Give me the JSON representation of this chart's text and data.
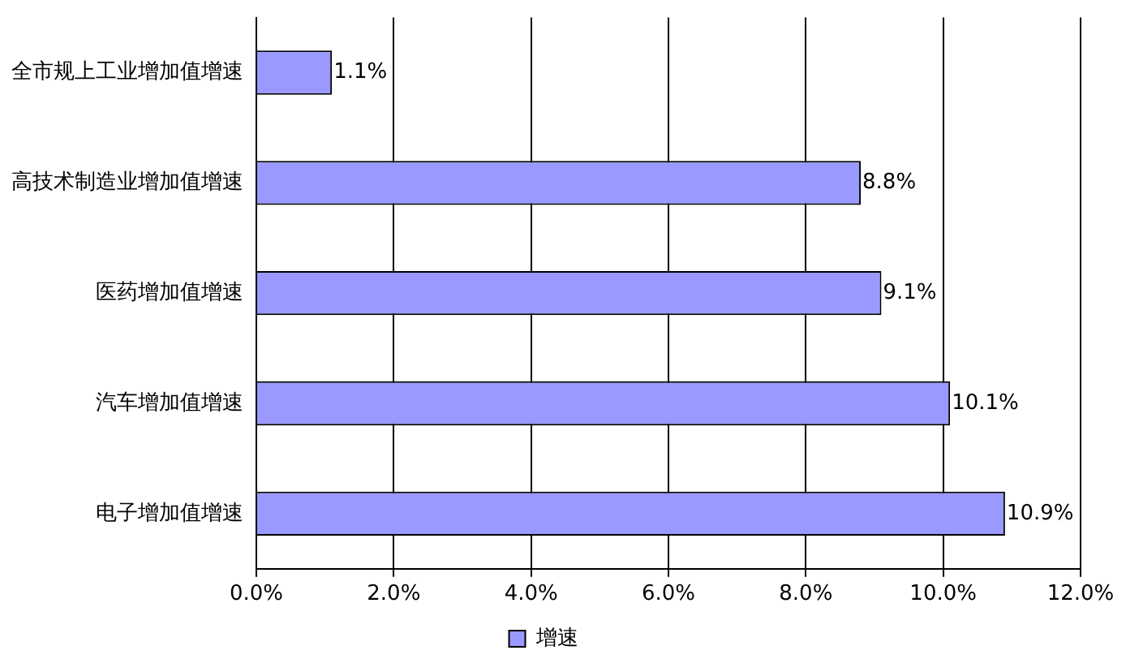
{
  "chart_data": {
    "type": "bar",
    "orientation": "horizontal",
    "categories": [
      "全市规上工业增加值增速",
      "高技术制造业增加值增速",
      "医药增加值增速",
      "汽车增加值增速",
      "电子增加值增速"
    ],
    "series": [
      {
        "name": "增速",
        "color": "#9999ff",
        "values": [
          1.1,
          8.8,
          9.1,
          10.1,
          10.9
        ],
        "value_labels": [
          "1.1%",
          "8.8%",
          "9.1%",
          "10.1%",
          "10.9%"
        ]
      }
    ],
    "xlim": [
      0,
      12
    ],
    "xticks": [
      {
        "value": 0,
        "label": "0.0%"
      },
      {
        "value": 2,
        "label": "2.0%"
      },
      {
        "value": 4,
        "label": "4.0%"
      },
      {
        "value": 6,
        "label": "6.0%"
      },
      {
        "value": 8,
        "label": "8.0%"
      },
      {
        "value": 10,
        "label": "10.0%"
      },
      {
        "value": 12,
        "label": "12.0%"
      }
    ],
    "grid": "x",
    "legend": "bottom"
  }
}
